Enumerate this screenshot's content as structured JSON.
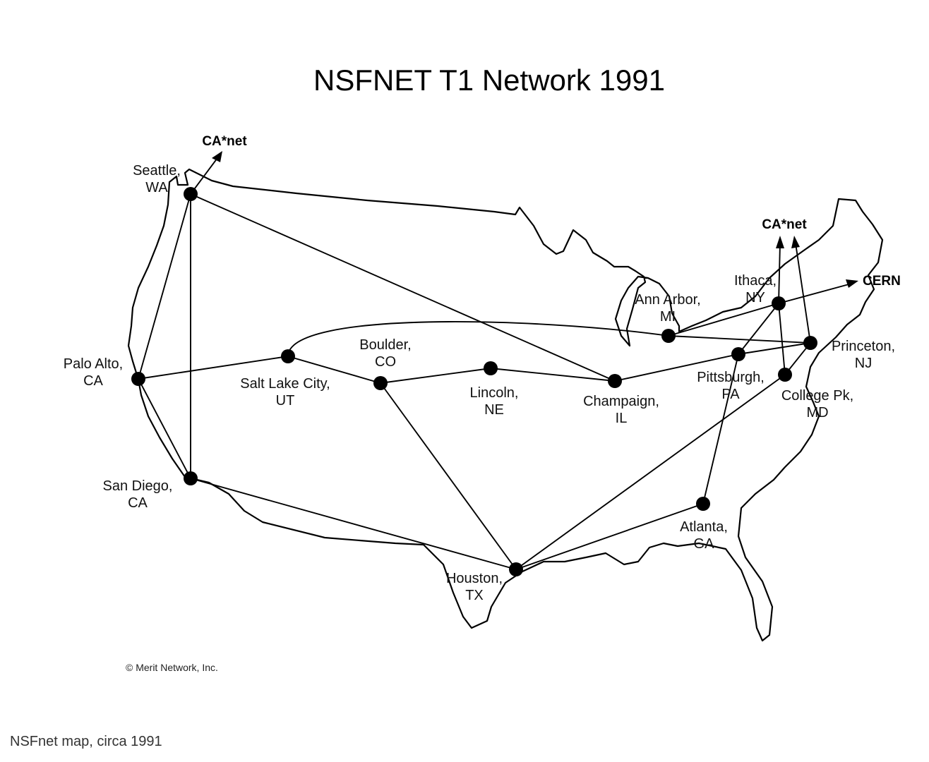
{
  "map": {
    "title": "NSFNET T1 Network 1991",
    "copyright": "© Merit Network, Inc.",
    "external_links": [
      {
        "id": "canet-west",
        "label": "CA*net"
      },
      {
        "id": "canet-east",
        "label": "CA*net"
      },
      {
        "id": "cern",
        "label": "CERN"
      }
    ],
    "nodes": [
      {
        "id": "seattle",
        "label": [
          "Seattle,",
          "WA"
        ]
      },
      {
        "id": "palo-alto",
        "label": [
          "Palo Alto,",
          "CA"
        ]
      },
      {
        "id": "san-diego",
        "label": [
          "San Diego,",
          "CA"
        ]
      },
      {
        "id": "salt-lake-city",
        "label": [
          "Salt Lake City,",
          "UT"
        ]
      },
      {
        "id": "boulder",
        "label": [
          "Boulder,",
          "CO"
        ]
      },
      {
        "id": "lincoln",
        "label": [
          "Lincoln,",
          "NE"
        ]
      },
      {
        "id": "champaign",
        "label": [
          "Champaign,",
          "IL"
        ]
      },
      {
        "id": "houston",
        "label": [
          "Houston,",
          "TX"
        ]
      },
      {
        "id": "atlanta",
        "label": [
          "Atlanta,",
          "GA"
        ]
      },
      {
        "id": "ann-arbor",
        "label": [
          "Ann Arbor,",
          "MI"
        ]
      },
      {
        "id": "pittsburgh",
        "label": [
          "Pittsburgh,",
          "PA"
        ]
      },
      {
        "id": "ithaca",
        "label": [
          "Ithaca,",
          "NY"
        ]
      },
      {
        "id": "princeton",
        "label": [
          "Princeton,",
          "NJ"
        ]
      },
      {
        "id": "college-park",
        "label": [
          "College Pk,",
          "MD"
        ]
      }
    ],
    "links": [
      [
        "seattle",
        "palo-alto"
      ],
      [
        "seattle",
        "san-diego"
      ],
      [
        "seattle",
        "champaign"
      ],
      [
        "palo-alto",
        "salt-lake-city"
      ],
      [
        "palo-alto",
        "san-diego"
      ],
      [
        "salt-lake-city",
        "boulder"
      ],
      [
        "salt-lake-city",
        "ann-arbor"
      ],
      [
        "boulder",
        "lincoln"
      ],
      [
        "boulder",
        "houston"
      ],
      [
        "lincoln",
        "champaign"
      ],
      [
        "champaign",
        "pittsburgh"
      ],
      [
        "san-diego",
        "houston"
      ],
      [
        "houston",
        "atlanta"
      ],
      [
        "houston",
        "college-park"
      ],
      [
        "atlanta",
        "pittsburgh"
      ],
      [
        "pittsburgh",
        "ithaca"
      ],
      [
        "pittsburgh",
        "princeton"
      ],
      [
        "ann-arbor",
        "ithaca"
      ],
      [
        "ann-arbor",
        "princeton"
      ],
      [
        "ithaca",
        "college-park"
      ],
      [
        "princeton",
        "college-park"
      ]
    ]
  },
  "caption": "NSFnet map, circa 1991"
}
